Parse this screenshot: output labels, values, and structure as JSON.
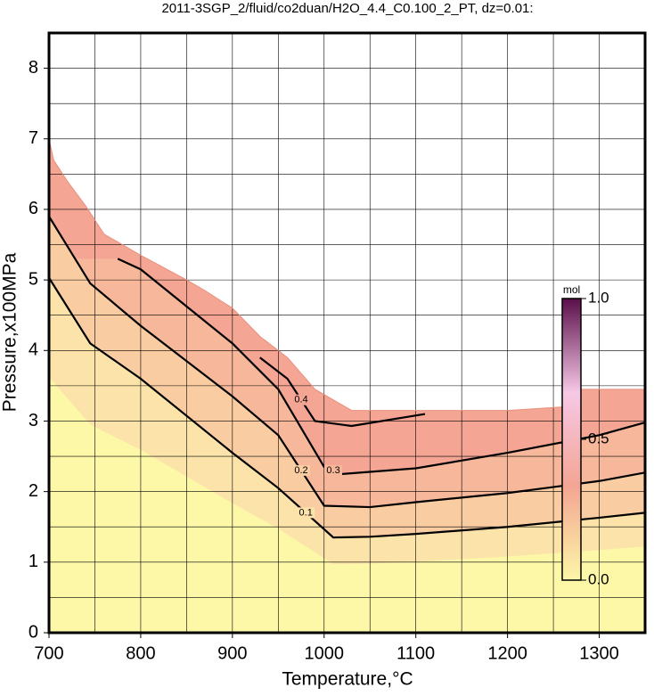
{
  "chart_data": {
    "type": "contour",
    "title": "2011-3SGP_2/fluid/co2duan/H2O_4.4_C0.100_2_PT, dz=0.01:",
    "x_label": "Temperature,°C",
    "y_label": "Pressure,x100MPa",
    "xlim": [
      700,
      1350
    ],
    "ylim": [
      0,
      8.5
    ],
    "xticks": [
      700,
      800,
      900,
      1000,
      1100,
      1200,
      1300
    ],
    "yticks": [
      0,
      1,
      2,
      3,
      4,
      5,
      6,
      7,
      8
    ],
    "xgrid": [
      700,
      750,
      800,
      850,
      900,
      950,
      1000,
      1050,
      1100,
      1150,
      1200,
      1250,
      1300,
      1350
    ],
    "ygrid": [
      0,
      0.5,
      1,
      1.5,
      2,
      2.5,
      3,
      3.5,
      4,
      4.5,
      5,
      5.5,
      6,
      6.5,
      7,
      7.5,
      8,
      8.5
    ],
    "grid": true,
    "boundary": {
      "x": [
        700,
        705,
        720,
        740,
        760,
        780,
        800,
        850,
        870,
        900,
        930,
        960,
        990,
        1010,
        1030,
        1100,
        1200,
        1260,
        1270,
        1350
      ],
      "y": [
        7.0,
        6.7,
        6.4,
        6.05,
        5.65,
        5.5,
        5.35,
        5.0,
        4.85,
        4.6,
        4.2,
        3.9,
        3.45,
        3.3,
        3.15,
        3.15,
        3.15,
        3.2,
        3.45,
        3.45
      ],
      "color": "#f4a593"
    },
    "contours": [
      {
        "level": 0.1,
        "color": "#fbe3aa",
        "x": [
          700,
          745,
          800,
          900,
          950,
          1010,
          1050,
          1100,
          1200,
          1300,
          1350
        ],
        "y": [
          5.03,
          4.1,
          3.6,
          2.55,
          2.05,
          1.35,
          1.36,
          1.4,
          1.5,
          1.63,
          1.7
        ]
      },
      {
        "level": 0.2,
        "color": "#f9cca2",
        "x": [
          700,
          745,
          800,
          900,
          950,
          1000,
          1050,
          1100,
          1200,
          1300,
          1350
        ],
        "y": [
          5.9,
          4.95,
          4.35,
          3.35,
          2.8,
          1.8,
          1.78,
          1.85,
          1.98,
          2.15,
          2.27
        ]
      },
      {
        "level": 0.3,
        "color": "#f7b79a",
        "x": [
          775,
          800,
          900,
          950,
          1000,
          1020,
          1100,
          1200,
          1300,
          1350
        ],
        "y": [
          5.3,
          5.15,
          4.1,
          3.45,
          2.35,
          2.25,
          2.33,
          2.55,
          2.8,
          2.98
        ]
      },
      {
        "level": 0.4,
        "color": "#f4a593",
        "x": [
          930,
          960,
          990,
          1030,
          1110
        ],
        "y": [
          3.9,
          3.6,
          3.0,
          2.93,
          3.1
        ]
      }
    ],
    "base_color": "#fdf7a8",
    "colorbar": {
      "label": "mol",
      "lim": [
        0,
        1
      ],
      "ticks": [
        {
          "value": 0,
          "label": "0.0"
        },
        0.5,
        {
          "value": 1,
          "label": "1.0"
        }
      ],
      "colors": [
        "#fdf7a8",
        "#f4a593",
        "#f6c8e6",
        "#5a0f4a"
      ]
    }
  }
}
